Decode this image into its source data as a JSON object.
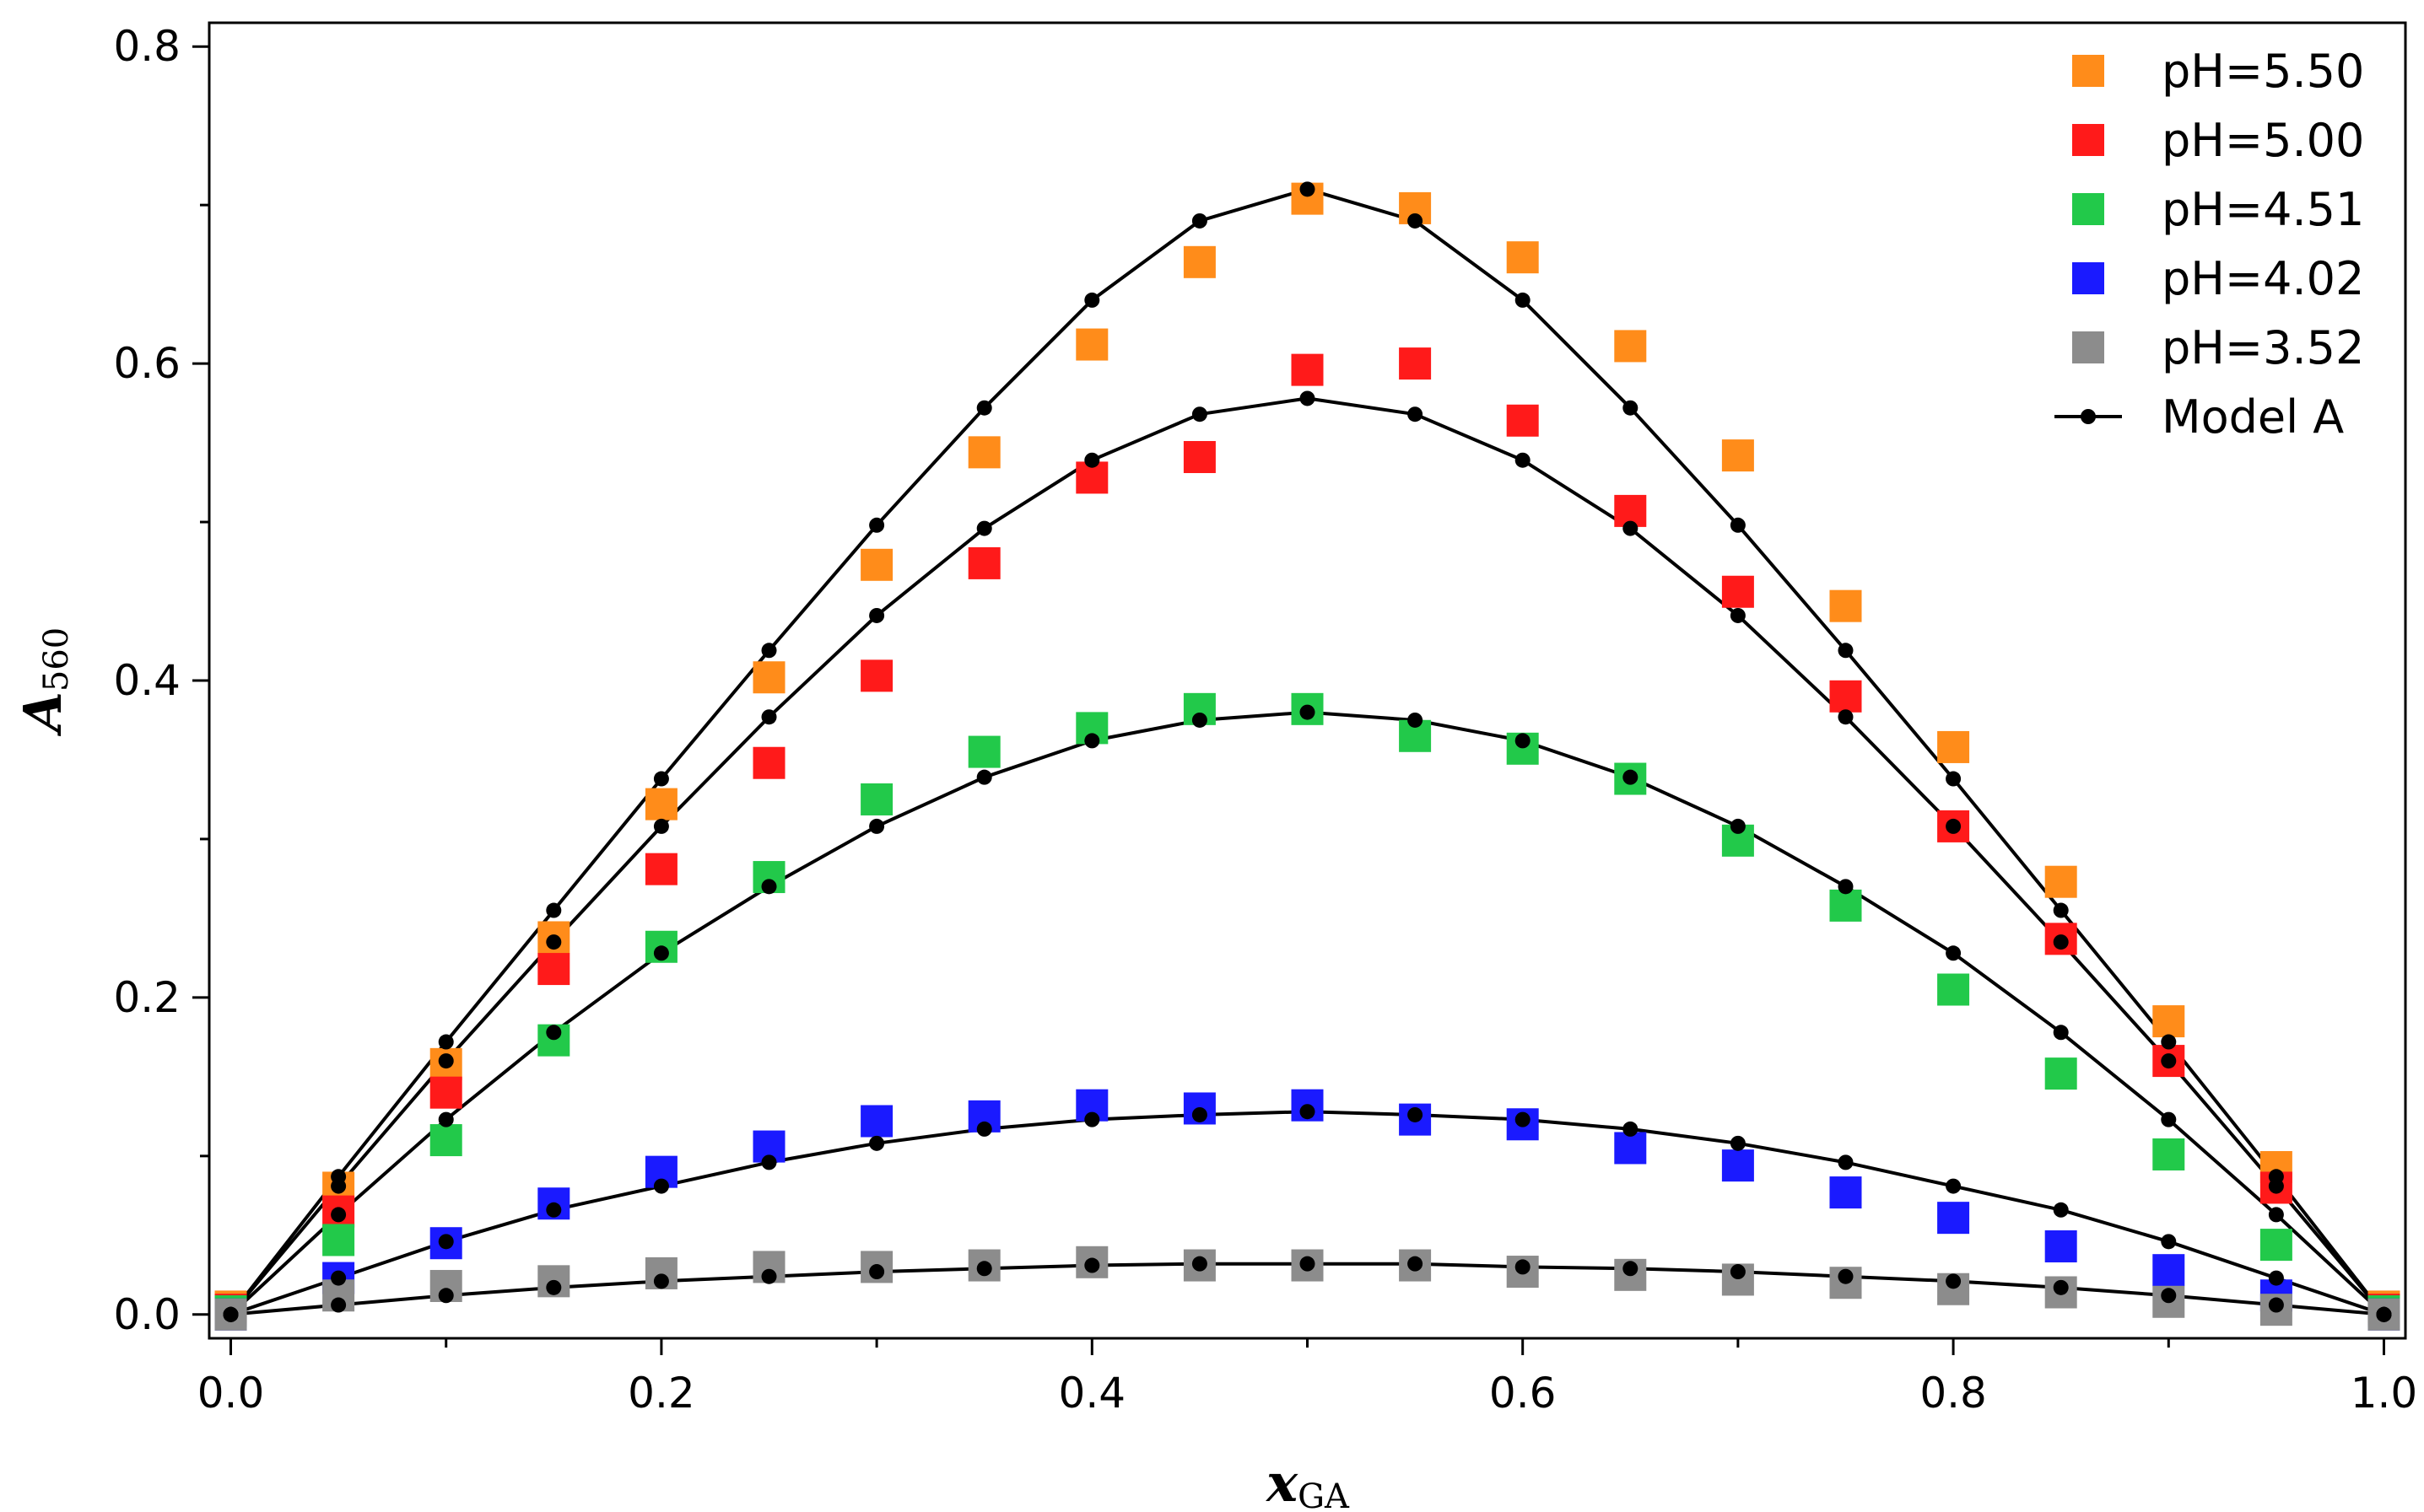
{
  "chart_data": {
    "type": "scatter",
    "xlabel": "x",
    "xlabel_sub": "GA",
    "ylabel": "A",
    "ylabel_sub": "560",
    "xlim": [
      -0.01,
      1.01
    ],
    "ylim": [
      -0.015,
      0.815
    ],
    "x_ticks": [
      "0.0",
      "0.2",
      "0.4",
      "0.6",
      "0.8",
      "1.0"
    ],
    "x_tick_values": [
      0.0,
      0.2,
      0.4,
      0.6,
      0.8,
      1.0
    ],
    "x_minor_tick_values": [
      0.1,
      0.3,
      0.5,
      0.7,
      0.9
    ],
    "y_ticks": [
      "0.0",
      "0.2",
      "0.4",
      "0.6",
      "0.8"
    ],
    "y_tick_values": [
      0.0,
      0.2,
      0.4,
      0.6,
      0.8
    ],
    "y_minor_tick_values": [
      0.1,
      0.3,
      0.5,
      0.7
    ],
    "grid": false,
    "legend_position": "top-right",
    "x": [
      0.0,
      0.05,
      0.1,
      0.15,
      0.2,
      0.25,
      0.3,
      0.35,
      0.4,
      0.45,
      0.5,
      0.55,
      0.6,
      0.65,
      0.7,
      0.75,
      0.8,
      0.85,
      0.9,
      0.95,
      1.0
    ],
    "series": [
      {
        "name": "pH=5.50",
        "color": "#ff8c1a",
        "marker": "square",
        "values": [
          0.005,
          0.08,
          0.158,
          0.238,
          0.322,
          0.402,
          0.473,
          0.544,
          0.612,
          0.664,
          0.704,
          0.698,
          0.667,
          0.611,
          0.542,
          0.447,
          0.358,
          0.273,
          0.185,
          0.093,
          0.005
        ]
      },
      {
        "name": "pH=5.00",
        "color": "#ff1a1a",
        "marker": "square",
        "values": [
          0.003,
          0.065,
          0.14,
          0.218,
          0.281,
          0.348,
          0.403,
          0.474,
          0.528,
          0.541,
          0.596,
          0.6,
          0.564,
          0.507,
          0.456,
          0.39,
          0.308,
          0.237,
          0.16,
          0.08,
          0.003
        ]
      },
      {
        "name": "pH=4.51",
        "color": "#22c94a",
        "marker": "square",
        "values": [
          0.002,
          0.047,
          0.11,
          0.173,
          0.232,
          0.276,
          0.325,
          0.355,
          0.37,
          0.382,
          0.382,
          0.365,
          0.357,
          0.338,
          0.299,
          0.258,
          0.205,
          0.152,
          0.101,
          0.044,
          0.002
        ]
      },
      {
        "name": "pH=4.02",
        "color": "#1a1aff",
        "marker": "square",
        "values": [
          0.0,
          0.023,
          0.045,
          0.07,
          0.09,
          0.106,
          0.122,
          0.125,
          0.132,
          0.13,
          0.132,
          0.123,
          0.12,
          0.105,
          0.094,
          0.077,
          0.061,
          0.043,
          0.028,
          0.012,
          0.0
        ]
      },
      {
        "name": "pH=3.52",
        "color": "#8c8c8c",
        "marker": "square",
        "values": [
          0.0,
          0.012,
          0.018,
          0.021,
          0.026,
          0.03,
          0.03,
          0.031,
          0.033,
          0.031,
          0.031,
          0.031,
          0.027,
          0.025,
          0.022,
          0.02,
          0.016,
          0.014,
          0.008,
          0.003,
          0.0
        ]
      },
      {
        "name": "Model A",
        "color": "#000000",
        "marker": "circle-line",
        "curves": [
          [
            0.0,
            0.087,
            0.172,
            0.255,
            0.338,
            0.419,
            0.498,
            0.572,
            0.64,
            0.69,
            0.71,
            0.69,
            0.64,
            0.572,
            0.498,
            0.419,
            0.338,
            0.255,
            0.172,
            0.087,
            0.0
          ],
          [
            0.0,
            0.081,
            0.16,
            0.235,
            0.308,
            0.377,
            0.441,
            0.496,
            0.539,
            0.568,
            0.578,
            0.568,
            0.539,
            0.496,
            0.441,
            0.377,
            0.308,
            0.235,
            0.16,
            0.081,
            0.0
          ],
          [
            0.0,
            0.063,
            0.123,
            0.178,
            0.228,
            0.27,
            0.308,
            0.339,
            0.362,
            0.375,
            0.38,
            0.375,
            0.362,
            0.339,
            0.308,
            0.27,
            0.228,
            0.178,
            0.123,
            0.063,
            0.0
          ],
          [
            0.0,
            0.023,
            0.046,
            0.066,
            0.081,
            0.096,
            0.108,
            0.117,
            0.123,
            0.126,
            0.128,
            0.126,
            0.123,
            0.117,
            0.108,
            0.096,
            0.081,
            0.066,
            0.046,
            0.023,
            0.0
          ],
          [
            0.0,
            0.006,
            0.012,
            0.017,
            0.021,
            0.024,
            0.027,
            0.029,
            0.031,
            0.032,
            0.032,
            0.032,
            0.03,
            0.029,
            0.027,
            0.024,
            0.021,
            0.017,
            0.012,
            0.006,
            0.0
          ]
        ]
      }
    ]
  }
}
